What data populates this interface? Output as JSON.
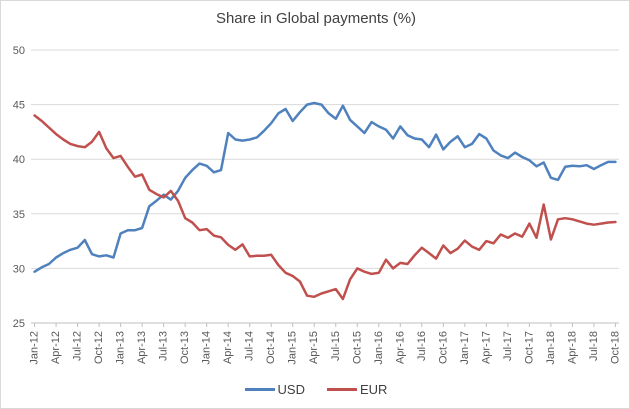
{
  "chart_data": {
    "type": "line",
    "title": "Share in Global payments (%)",
    "xlabel": "",
    "ylabel": "",
    "x_unit": "month",
    "x_range": [
      "Jan-12",
      "Oct-18"
    ],
    "x_tick_labels": [
      "Jan-12",
      "Apr-12",
      "Jul-12",
      "Oct-12",
      "Jan-13",
      "Apr-13",
      "Jul-13",
      "Oct-13",
      "Jan-14",
      "Apr-14",
      "Jul-14",
      "Oct-14",
      "Jan-15",
      "Apr-15",
      "Jul-15",
      "Oct-15",
      "Jan-16",
      "Apr-16",
      "Jul-16",
      "Oct-16",
      "Jan-17",
      "Apr-17",
      "Jul-17",
      "Oct-17",
      "Jan-18",
      "Apr-18",
      "Jul-18",
      "Oct-18"
    ],
    "x_tick_step_months": 3,
    "ylim": [
      25,
      50
    ],
    "y_ticks": [
      25,
      30,
      35,
      40,
      45,
      50
    ],
    "grid": "horizontal",
    "legend_position": "bottom-center",
    "series": [
      {
        "name": "USD",
        "color": "#4F81BD",
        "values": [
          29.7,
          30.1,
          30.4,
          31.0,
          31.4,
          31.7,
          31.9,
          32.6,
          31.3,
          31.1,
          31.2,
          31.0,
          33.2,
          33.5,
          33.5,
          33.7,
          35.7,
          36.2,
          36.75,
          36.3,
          37.1,
          38.3,
          39.0,
          39.6,
          39.4,
          38.8,
          39.0,
          42.4,
          41.8,
          41.7,
          41.8,
          42.0,
          42.6,
          43.3,
          44.2,
          44.6,
          43.5,
          44.3,
          45.0,
          45.15,
          45.0,
          44.2,
          43.7,
          44.9,
          43.6,
          43.0,
          42.4,
          43.4,
          43.0,
          42.7,
          41.9,
          43.0,
          42.2,
          41.9,
          41.8,
          41.1,
          42.25,
          40.9,
          41.6,
          42.1,
          41.1,
          41.4,
          42.3,
          41.9,
          40.8,
          40.35,
          40.1,
          40.6,
          40.2,
          39.9,
          39.35,
          39.7,
          38.3,
          38.1,
          39.3,
          39.4,
          39.35,
          39.45,
          39.1,
          39.45,
          39.75,
          39.75
        ]
      },
      {
        "name": "EUR",
        "color": "#C0504D",
        "values": [
          44.0,
          43.5,
          42.9,
          42.3,
          41.8,
          41.4,
          41.2,
          41.1,
          41.6,
          42.5,
          41.0,
          40.1,
          40.3,
          39.3,
          38.4,
          38.6,
          37.2,
          36.8,
          36.5,
          37.1,
          36.2,
          34.6,
          34.2,
          33.5,
          33.6,
          33.0,
          32.85,
          32.15,
          31.7,
          32.2,
          31.1,
          31.15,
          31.15,
          31.25,
          30.3,
          29.6,
          29.3,
          28.8,
          27.5,
          27.4,
          27.7,
          27.9,
          28.1,
          27.2,
          29.0,
          30.0,
          29.7,
          29.5,
          29.6,
          30.8,
          30.0,
          30.5,
          30.4,
          31.2,
          31.9,
          31.4,
          30.9,
          32.1,
          31.4,
          31.8,
          32.55,
          32.0,
          31.7,
          32.5,
          32.3,
          33.1,
          32.8,
          33.2,
          32.9,
          34.1,
          32.8,
          35.85,
          32.65,
          34.5,
          34.6,
          34.5,
          34.3,
          34.1,
          34.0,
          34.1,
          34.2,
          34.25
        ]
      }
    ]
  },
  "style": {
    "background": "#FFFFFF",
    "border_color": "#D9D9D9",
    "grid_color": "#D9D9D9",
    "axis_line_color": "#BFBFBF",
    "tick_mark_color": "#BFBFBF",
    "axis_label_color": "#595959",
    "title_color": "#404040",
    "line_width": 2.5
  }
}
